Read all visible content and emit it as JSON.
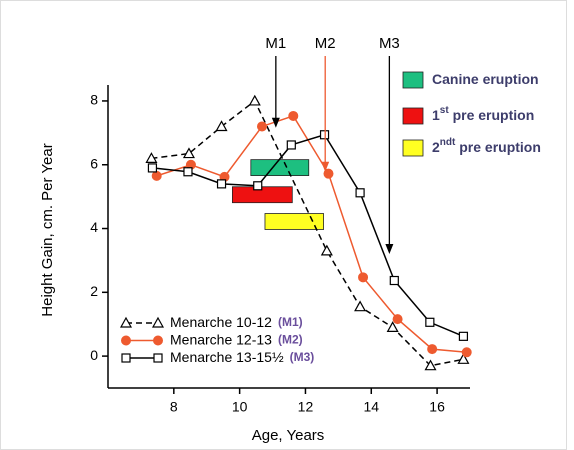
{
  "chart_data": {
    "type": "line",
    "x_label": "Age, Years",
    "y_label": "Height Gain, cm. Per Year",
    "xlim": [
      6,
      17
    ],
    "ylim": [
      -1,
      8.5
    ],
    "xticks": [
      8,
      10,
      12,
      14,
      16
    ],
    "yticks": [
      0,
      2,
      4,
      6,
      8
    ],
    "series": [
      {
        "name": "Menarche 10-12",
        "tag": "(M1)",
        "color": "#000000",
        "dash": true,
        "marker": "triangle",
        "x": [
          7.32,
          8.46,
          9.45,
          10.46,
          12.65,
          13.66,
          14.65,
          15.8,
          16.8
        ],
        "values": [
          6.2,
          6.35,
          7.2,
          8.0,
          3.3,
          1.55,
          0.9,
          -0.3,
          -0.1
        ]
      },
      {
        "name": "Menarche 12-13",
        "tag": "(M2)",
        "color": "#ee5a2f",
        "dash": false,
        "marker": "circle",
        "x": [
          7.48,
          8.52,
          9.54,
          10.68,
          11.63,
          12.7,
          13.75,
          14.8,
          15.85,
          16.9
        ],
        "values": [
          5.65,
          6.0,
          5.62,
          7.2,
          7.53,
          5.72,
          2.47,
          1.16,
          0.22,
          0.12
        ]
      },
      {
        "name": "Menarche 13-15½",
        "tag": "(M3)",
        "color": "#000000",
        "dash": false,
        "marker": "square",
        "x": [
          7.35,
          8.43,
          9.45,
          10.55,
          11.57,
          12.58,
          13.66,
          14.7,
          15.78,
          16.8
        ],
        "values": [
          5.9,
          5.78,
          5.4,
          5.34,
          6.62,
          6.94,
          5.12,
          2.37,
          1.06,
          0.62
        ]
      }
    ],
    "bands": [
      {
        "label": [
          "Canine eruption"
        ],
        "color": "#1dbf80",
        "x": [
          10.34,
          12.1
        ],
        "y": [
          5.66,
          6.16
        ]
      },
      {
        "label": [
          "1",
          "st",
          " pre eruption"
        ],
        "color": "#ee1111",
        "x": [
          9.78,
          11.6
        ],
        "y": [
          4.81,
          5.31
        ]
      },
      {
        "label": [
          "2",
          "ndt",
          " pre eruption"
        ],
        "color": "#ffff22",
        "x": [
          10.77,
          12.55
        ],
        "y": [
          3.97,
          4.47
        ]
      }
    ],
    "annotations": [
      {
        "text": "M1",
        "x": 11.1,
        "y": 7.16,
        "color": "#000000"
      },
      {
        "text": "M2",
        "x": 12.6,
        "y": 5.78,
        "color": "#ee5a2f"
      },
      {
        "text": "M3",
        "x": 14.55,
        "y": 3.2,
        "color": "#000000"
      }
    ]
  }
}
